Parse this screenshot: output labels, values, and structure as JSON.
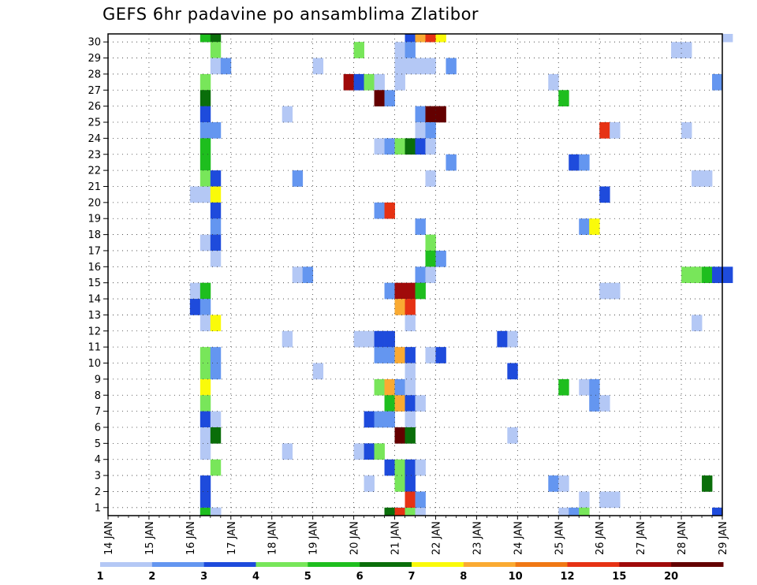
{
  "chart_data": {
    "type": "heatmap",
    "title": "GEFS 6hr padavine po ansamblima Zlatibor",
    "xlabel": "",
    "ylabel": "",
    "x_tick_labels": [
      "14 JAN",
      "15 JAN",
      "16 JAN",
      "17 JAN",
      "18 JAN",
      "19 JAN",
      "20 JAN",
      "21 JAN",
      "22 JAN",
      "23 JAN",
      "24 JAN",
      "25 JAN",
      "26 JAN",
      "27 JAN",
      "28 JAN",
      "29 JAN"
    ],
    "y_tick_labels": [
      "1",
      "2",
      "3",
      "4",
      "5",
      "6",
      "7",
      "8",
      "9",
      "10",
      "11",
      "12",
      "13",
      "14",
      "15",
      "16",
      "17",
      "18",
      "19",
      "20",
      "21",
      "22",
      "23",
      "24",
      "25",
      "26",
      "27",
      "28",
      "29",
      "30"
    ],
    "x_unit": "6-hour step from 14 JAN 00",
    "grid": true,
    "legend": {
      "placement": "bottom",
      "labels": [
        "1",
        "2",
        "3",
        "4",
        "5",
        "6",
        "7",
        "8",
        "10",
        "12",
        "15",
        "20"
      ],
      "colors": [
        "#b4c8f5",
        "#6496f0",
        "#1e4bdc",
        "#78e65a",
        "#1ebe1e",
        "#0a6e0a",
        "#fafa0a",
        "#faaa32",
        "#f07814",
        "#e63214",
        "#a00a0a",
        "#640000"
      ]
    },
    "cells": [
      [
        30,
        9,
        4
      ],
      [
        30,
        10,
        5
      ],
      [
        30,
        29,
        2
      ],
      [
        30,
        30,
        7
      ],
      [
        30,
        31,
        9
      ],
      [
        30,
        32,
        6
      ],
      [
        30,
        60,
        0
      ],
      [
        29,
        10,
        3
      ],
      [
        29,
        24,
        3
      ],
      [
        29,
        28,
        0
      ],
      [
        29,
        29,
        1
      ],
      [
        29,
        55,
        0
      ],
      [
        29,
        56,
        0
      ],
      [
        28,
        10,
        0
      ],
      [
        28,
        11,
        1
      ],
      [
        28,
        20,
        0
      ],
      [
        28,
        28,
        0
      ],
      [
        28,
        29,
        0
      ],
      [
        28,
        30,
        0
      ],
      [
        28,
        31,
        0
      ],
      [
        28,
        33,
        1
      ],
      [
        27,
        9,
        3
      ],
      [
        27,
        23,
        10
      ],
      [
        27,
        24,
        2
      ],
      [
        27,
        25,
        3
      ],
      [
        27,
        26,
        0
      ],
      [
        27,
        28,
        0
      ],
      [
        27,
        43,
        0
      ],
      [
        27,
        59,
        1
      ],
      [
        26,
        9,
        5
      ],
      [
        26,
        26,
        11
      ],
      [
        26,
        27,
        1
      ],
      [
        26,
        44,
        4
      ],
      [
        25,
        9,
        2
      ],
      [
        25,
        17,
        0
      ],
      [
        25,
        30,
        1
      ],
      [
        25,
        31,
        11
      ],
      [
        25,
        32,
        11
      ],
      [
        24,
        9,
        1
      ],
      [
        24,
        10,
        1
      ],
      [
        24,
        30,
        0
      ],
      [
        24,
        31,
        1
      ],
      [
        24,
        48,
        9
      ],
      [
        24,
        49,
        0
      ],
      [
        24,
        56,
        0
      ],
      [
        23,
        9,
        4
      ],
      [
        23,
        26,
        0
      ],
      [
        23,
        27,
        1
      ],
      [
        23,
        28,
        3
      ],
      [
        23,
        29,
        5
      ],
      [
        23,
        30,
        2
      ],
      [
        23,
        31,
        0
      ],
      [
        22,
        9,
        4
      ],
      [
        22,
        33,
        1
      ],
      [
        22,
        45,
        2
      ],
      [
        22,
        46,
        1
      ],
      [
        21,
        9,
        3
      ],
      [
        21,
        10,
        2
      ],
      [
        21,
        18,
        1
      ],
      [
        21,
        31,
        0
      ],
      [
        21,
        57,
        0
      ],
      [
        21,
        58,
        0
      ],
      [
        20,
        8,
        0
      ],
      [
        20,
        9,
        0
      ],
      [
        20,
        10,
        6
      ],
      [
        20,
        48,
        2
      ],
      [
        19,
        10,
        2
      ],
      [
        19,
        26,
        1
      ],
      [
        19,
        27,
        9
      ],
      [
        18,
        10,
        1
      ],
      [
        18,
        30,
        1
      ],
      [
        18,
        46,
        1
      ],
      [
        18,
        47,
        6
      ],
      [
        17,
        9,
        0
      ],
      [
        17,
        10,
        2
      ],
      [
        17,
        31,
        3
      ],
      [
        16,
        10,
        0
      ],
      [
        16,
        31,
        4
      ],
      [
        16,
        32,
        1
      ],
      [
        15,
        18,
        0
      ],
      [
        15,
        19,
        1
      ],
      [
        15,
        30,
        1
      ],
      [
        15,
        31,
        0
      ],
      [
        15,
        56,
        3
      ],
      [
        15,
        57,
        3
      ],
      [
        15,
        58,
        4
      ],
      [
        15,
        59,
        2
      ],
      [
        15,
        60,
        2
      ],
      [
        14,
        8,
        0
      ],
      [
        14,
        9,
        4
      ],
      [
        14,
        27,
        1
      ],
      [
        14,
        28,
        10
      ],
      [
        14,
        29,
        10
      ],
      [
        14,
        30,
        4
      ],
      [
        14,
        48,
        0
      ],
      [
        14,
        49,
        0
      ],
      [
        13,
        8,
        2
      ],
      [
        13,
        9,
        1
      ],
      [
        13,
        28,
        7
      ],
      [
        13,
        29,
        9
      ],
      [
        12,
        9,
        0
      ],
      [
        12,
        10,
        6
      ],
      [
        12,
        29,
        0
      ],
      [
        12,
        57,
        0
      ],
      [
        11,
        17,
        0
      ],
      [
        11,
        24,
        0
      ],
      [
        11,
        25,
        0
      ],
      [
        11,
        26,
        2
      ],
      [
        11,
        27,
        2
      ],
      [
        11,
        38,
        2
      ],
      [
        11,
        39,
        0
      ],
      [
        10,
        9,
        3
      ],
      [
        10,
        10,
        1
      ],
      [
        10,
        26,
        1
      ],
      [
        10,
        27,
        1
      ],
      [
        10,
        28,
        7
      ],
      [
        10,
        29,
        2
      ],
      [
        10,
        31,
        0
      ],
      [
        10,
        32,
        2
      ],
      [
        9,
        9,
        3
      ],
      [
        9,
        10,
        1
      ],
      [
        9,
        20,
        0
      ],
      [
        9,
        29,
        0
      ],
      [
        9,
        39,
        2
      ],
      [
        8,
        9,
        6
      ],
      [
        8,
        26,
        3
      ],
      [
        8,
        27,
        7
      ],
      [
        8,
        28,
        1
      ],
      [
        8,
        29,
        0
      ],
      [
        8,
        44,
        4
      ],
      [
        8,
        46,
        0
      ],
      [
        8,
        47,
        1
      ],
      [
        7,
        9,
        3
      ],
      [
        7,
        27,
        4
      ],
      [
        7,
        28,
        7
      ],
      [
        7,
        29,
        2
      ],
      [
        7,
        30,
        0
      ],
      [
        7,
        47,
        1
      ],
      [
        7,
        48,
        0
      ],
      [
        6,
        9,
        2
      ],
      [
        6,
        10,
        0
      ],
      [
        6,
        25,
        2
      ],
      [
        6,
        26,
        1
      ],
      [
        6,
        27,
        1
      ],
      [
        6,
        29,
        0
      ],
      [
        5,
        9,
        0
      ],
      [
        5,
        10,
        5
      ],
      [
        5,
        28,
        11
      ],
      [
        5,
        29,
        5
      ],
      [
        5,
        39,
        0
      ],
      [
        4,
        9,
        0
      ],
      [
        4,
        17,
        0
      ],
      [
        4,
        24,
        0
      ],
      [
        4,
        25,
        2
      ],
      [
        4,
        26,
        3
      ],
      [
        3,
        10,
        3
      ],
      [
        3,
        27,
        2
      ],
      [
        3,
        28,
        3
      ],
      [
        3,
        29,
        2
      ],
      [
        3,
        30,
        0
      ],
      [
        2,
        9,
        2
      ],
      [
        2,
        25,
        0
      ],
      [
        2,
        28,
        3
      ],
      [
        2,
        29,
        2
      ],
      [
        2,
        43,
        1
      ],
      [
        2,
        44,
        0
      ],
      [
        2,
        58,
        5
      ],
      [
        1,
        9,
        2
      ],
      [
        1,
        29,
        9
      ],
      [
        1,
        30,
        1
      ],
      [
        1,
        46,
        0
      ],
      [
        1,
        48,
        0
      ],
      [
        1,
        49,
        0
      ],
      [
        0,
        9,
        1
      ],
      [
        0,
        10,
        1
      ],
      [
        0,
        27,
        5
      ],
      [
        0,
        28,
        2
      ],
      [
        0,
        44,
        0
      ],
      [
        0,
        45,
        1
      ],
      [
        0,
        46,
        3
      ],
      [
        0,
        59,
        2
      ],
      [
        -1,
        9,
        4
      ],
      [
        -1,
        10,
        0
      ],
      [
        -1,
        27,
        5
      ],
      [
        -1,
        28,
        9
      ],
      [
        -1,
        29,
        3
      ],
      [
        -1,
        30,
        0
      ]
    ]
  }
}
